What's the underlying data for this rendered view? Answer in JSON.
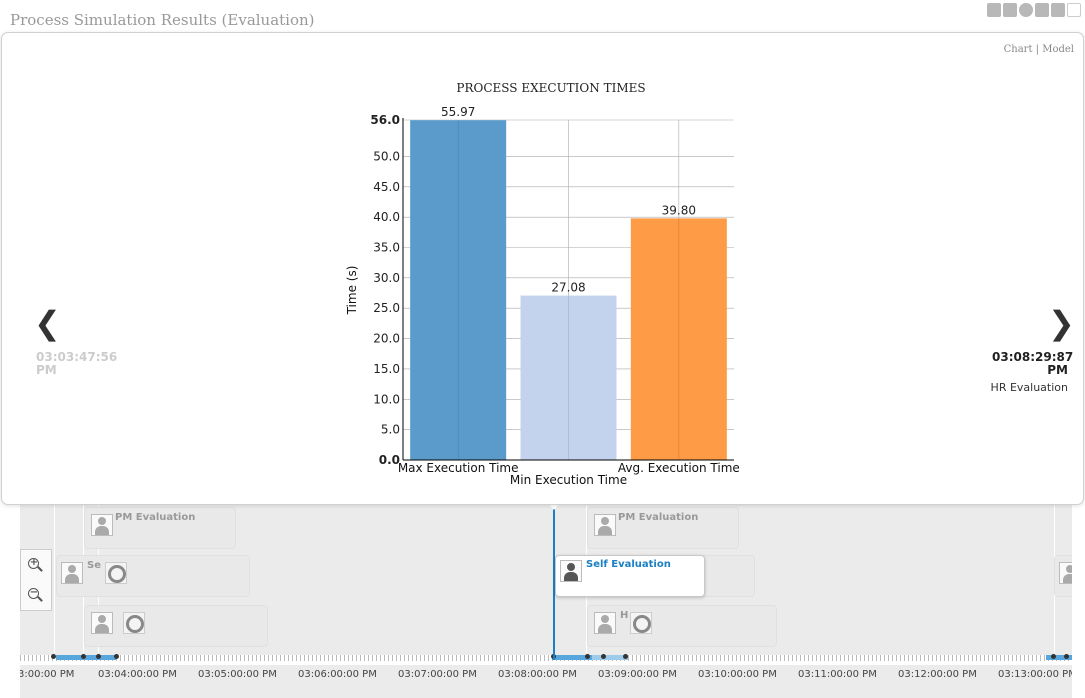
{
  "page": {
    "title": "Process Simulation Results (Evaluation)"
  },
  "toolbar": {
    "icons": [
      "bar-chart-icon",
      "grid-icon",
      "pie-chart-icon",
      "table-icon",
      "export-icon",
      "line-chart-icon"
    ]
  },
  "view_switch": {
    "chart_label": "Chart",
    "separator": "|",
    "model_label": "Model"
  },
  "navigation": {
    "prev_time_line1": "03:03:47:56",
    "prev_time_line2": "PM",
    "next_time_line1": "03:08:29:87",
    "next_time_line2": "PM",
    "next_activity": "HR Evaluation"
  },
  "chart_data": {
    "type": "bar",
    "title": "PROCESS EXECUTION TIMES",
    "ylabel": "Time (s)",
    "xlabel": "",
    "categories": [
      "Max Execution Time",
      "Min Execution Time",
      "Avg. Execution Time"
    ],
    "values": [
      55.97,
      27.08,
      39.8
    ],
    "value_labels": [
      "55.97",
      "27.08",
      "39.80"
    ],
    "colors": [
      "#5b9bcb",
      "#c3d3ed",
      "#fd9b46"
    ],
    "ylim": [
      0,
      56
    ],
    "yticks": [
      "0.0",
      "5.0",
      "10.0",
      "15.0",
      "20.0",
      "25.0",
      "30.0",
      "35.0",
      "40.0",
      "45.0",
      "50.0",
      "56.0"
    ],
    "ytick_values": [
      0,
      5,
      10,
      15,
      20,
      25,
      30,
      35,
      40,
      45,
      50,
      56
    ],
    "grid": true,
    "legend": "none"
  },
  "timeline": {
    "time_labels": [
      "3:00:00 PM",
      "03:04:00:00 PM",
      "03:05:00:00 PM",
      "03:06:00:00 PM",
      "03:07:00:00 PM",
      "03:08:00:00 PM",
      "03:09:00:00 PM",
      "03:10:00:00 PM",
      "03:11:00:00 PM",
      "03:12:00:00 PM",
      "03:13:00:00 PM"
    ],
    "events": {
      "pm_evaluation_1": "PM Evaluation",
      "self_evaluation_1": "Se",
      "pm_evaluation_2": "PM Evaluation",
      "self_evaluation_active": "Self Evaluation",
      "hr_evaluation_2": "H"
    },
    "zoom_in_label": "+",
    "zoom_out_label": "−"
  }
}
